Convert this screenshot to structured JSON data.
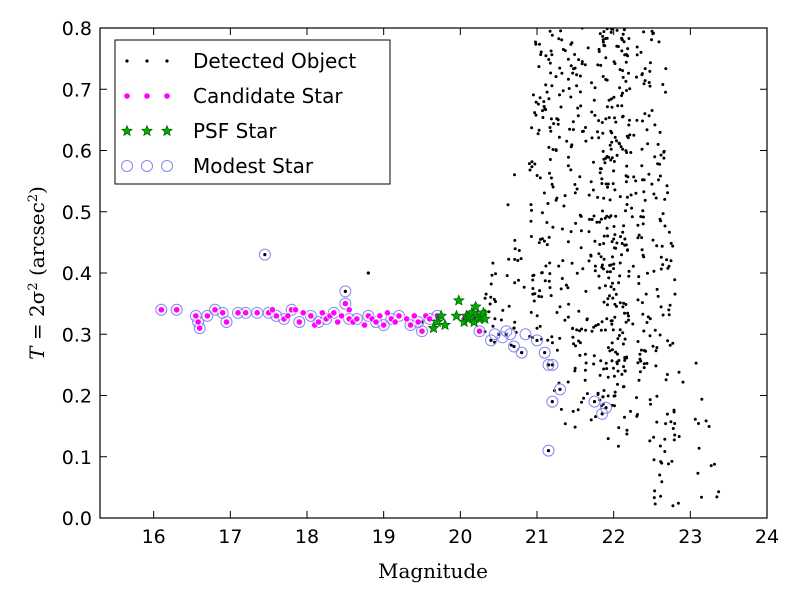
{
  "chart_data": {
    "type": "scatter",
    "xlabel": "Magnitude",
    "ylabel_main": "T",
    "ylabel_eq": " = 2σ",
    "ylabel_exp": "2",
    "ylabel_units": " (arcsec",
    "ylabel_units_exp": "2",
    "ylabel_close": ")",
    "xlim": [
      15.3,
      24
    ],
    "ylim": [
      0.0,
      0.8
    ],
    "xticks": [
      "16",
      "17",
      "18",
      "19",
      "20",
      "21",
      "22",
      "23",
      "24"
    ],
    "yticks": [
      "0.0",
      "0.1",
      "0.2",
      "0.3",
      "0.4",
      "0.5",
      "0.6",
      "0.7",
      "0.8"
    ],
    "legend_position": "top-left",
    "grid": false,
    "colors": {
      "detected": "#000000",
      "candidate": "#ff00ff",
      "psf": "#00aa00",
      "modest": "#8888ee"
    },
    "series": [
      {
        "name": "Detected Object",
        "marker": "dot",
        "random_cloud": {
          "count": 720,
          "x_range": [
            20.3,
            23.4
          ],
          "y_range": [
            0.02,
            0.8
          ]
        },
        "points": [
          [
            17.45,
            0.43
          ],
          [
            18.5,
            0.37
          ],
          [
            18.5,
            0.35
          ],
          [
            18.8,
            0.4
          ],
          [
            17.6,
            0.33
          ],
          [
            19.5,
            0.32
          ],
          [
            20.6,
            0.3
          ],
          [
            20.7,
            0.31
          ],
          [
            20.7,
            0.28
          ],
          [
            20.8,
            0.27
          ],
          [
            21.0,
            0.29
          ],
          [
            21.1,
            0.27
          ],
          [
            21.15,
            0.25
          ],
          [
            21.2,
            0.25
          ],
          [
            21.2,
            0.19
          ],
          [
            21.3,
            0.21
          ],
          [
            21.75,
            0.19
          ],
          [
            21.85,
            0.17
          ],
          [
            21.9,
            0.18
          ],
          [
            21.15,
            0.11
          ],
          [
            20.5,
            0.3
          ],
          [
            20.4,
            0.29
          ]
        ]
      },
      {
        "name": "Candidate Star",
        "marker": "small-circle",
        "points": [
          [
            16.1,
            0.34
          ],
          [
            16.3,
            0.34
          ],
          [
            16.55,
            0.33
          ],
          [
            16.58,
            0.32
          ],
          [
            16.6,
            0.31
          ],
          [
            16.7,
            0.33
          ],
          [
            16.8,
            0.34
          ],
          [
            16.9,
            0.335
          ],
          [
            16.95,
            0.32
          ],
          [
            17.1,
            0.335
          ],
          [
            17.2,
            0.335
          ],
          [
            17.35,
            0.335
          ],
          [
            17.5,
            0.335
          ],
          [
            17.55,
            0.34
          ],
          [
            17.6,
            0.33
          ],
          [
            17.7,
            0.325
          ],
          [
            17.75,
            0.33
          ],
          [
            17.8,
            0.34
          ],
          [
            17.85,
            0.34
          ],
          [
            17.9,
            0.32
          ],
          [
            17.95,
            0.335
          ],
          [
            18.05,
            0.33
          ],
          [
            18.1,
            0.315
          ],
          [
            18.15,
            0.32
          ],
          [
            18.2,
            0.335
          ],
          [
            18.25,
            0.325
          ],
          [
            18.3,
            0.33
          ],
          [
            18.35,
            0.335
          ],
          [
            18.4,
            0.32
          ],
          [
            18.45,
            0.33
          ],
          [
            18.5,
            0.35
          ],
          [
            18.55,
            0.34
          ],
          [
            18.55,
            0.325
          ],
          [
            18.6,
            0.32
          ],
          [
            18.65,
            0.325
          ],
          [
            18.75,
            0.315
          ],
          [
            18.8,
            0.33
          ],
          [
            18.85,
            0.325
          ],
          [
            18.9,
            0.32
          ],
          [
            18.95,
            0.33
          ],
          [
            19.0,
            0.315
          ],
          [
            19.05,
            0.335
          ],
          [
            19.1,
            0.325
          ],
          [
            19.15,
            0.32
          ],
          [
            19.2,
            0.33
          ],
          [
            19.3,
            0.325
          ],
          [
            19.35,
            0.315
          ],
          [
            19.4,
            0.33
          ],
          [
            19.45,
            0.32
          ],
          [
            19.5,
            0.305
          ],
          [
            19.55,
            0.33
          ],
          [
            19.6,
            0.325
          ],
          [
            19.7,
            0.33
          ],
          [
            20.05,
            0.325
          ],
          [
            20.25,
            0.305
          ]
        ]
      },
      {
        "name": "PSF Star",
        "marker": "star",
        "points": [
          [
            19.65,
            0.31
          ],
          [
            19.7,
            0.32
          ],
          [
            19.75,
            0.33
          ],
          [
            19.8,
            0.315
          ],
          [
            19.95,
            0.33
          ],
          [
            19.98,
            0.355
          ],
          [
            20.05,
            0.32
          ],
          [
            20.08,
            0.33
          ],
          [
            20.1,
            0.325
          ],
          [
            20.12,
            0.33
          ],
          [
            20.15,
            0.335
          ],
          [
            20.18,
            0.32
          ],
          [
            20.2,
            0.345
          ],
          [
            20.22,
            0.33
          ],
          [
            20.25,
            0.325
          ],
          [
            20.28,
            0.33
          ],
          [
            20.3,
            0.335
          ],
          [
            20.32,
            0.325
          ]
        ]
      },
      {
        "name": "Modest Star",
        "marker": "open-circle",
        "points": [
          [
            16.1,
            0.34
          ],
          [
            16.3,
            0.34
          ],
          [
            16.55,
            0.33
          ],
          [
            16.58,
            0.32
          ],
          [
            16.6,
            0.31
          ],
          [
            16.7,
            0.33
          ],
          [
            16.8,
            0.34
          ],
          [
            16.9,
            0.335
          ],
          [
            16.95,
            0.32
          ],
          [
            17.1,
            0.335
          ],
          [
            17.2,
            0.335
          ],
          [
            17.35,
            0.335
          ],
          [
            17.45,
            0.43
          ],
          [
            17.5,
            0.335
          ],
          [
            17.6,
            0.33
          ],
          [
            17.7,
            0.325
          ],
          [
            17.8,
            0.34
          ],
          [
            17.9,
            0.32
          ],
          [
            18.05,
            0.33
          ],
          [
            18.15,
            0.32
          ],
          [
            18.25,
            0.325
          ],
          [
            18.35,
            0.335
          ],
          [
            18.5,
            0.37
          ],
          [
            18.5,
            0.35
          ],
          [
            18.55,
            0.325
          ],
          [
            18.65,
            0.325
          ],
          [
            18.8,
            0.33
          ],
          [
            18.9,
            0.32
          ],
          [
            19.0,
            0.315
          ],
          [
            19.1,
            0.325
          ],
          [
            19.2,
            0.33
          ],
          [
            19.35,
            0.315
          ],
          [
            19.45,
            0.32
          ],
          [
            19.5,
            0.305
          ],
          [
            19.6,
            0.325
          ],
          [
            19.7,
            0.33
          ],
          [
            20.25,
            0.305
          ],
          [
            20.4,
            0.29
          ],
          [
            20.45,
            0.3
          ],
          [
            20.55,
            0.295
          ],
          [
            20.6,
            0.305
          ],
          [
            20.65,
            0.3
          ],
          [
            20.7,
            0.28
          ],
          [
            20.8,
            0.27
          ],
          [
            20.85,
            0.3
          ],
          [
            21.0,
            0.29
          ],
          [
            21.1,
            0.27
          ],
          [
            21.15,
            0.25
          ],
          [
            21.2,
            0.25
          ],
          [
            21.2,
            0.19
          ],
          [
            21.3,
            0.21
          ],
          [
            21.75,
            0.19
          ],
          [
            21.85,
            0.17
          ],
          [
            21.9,
            0.18
          ],
          [
            21.15,
            0.11
          ]
        ]
      }
    ]
  }
}
